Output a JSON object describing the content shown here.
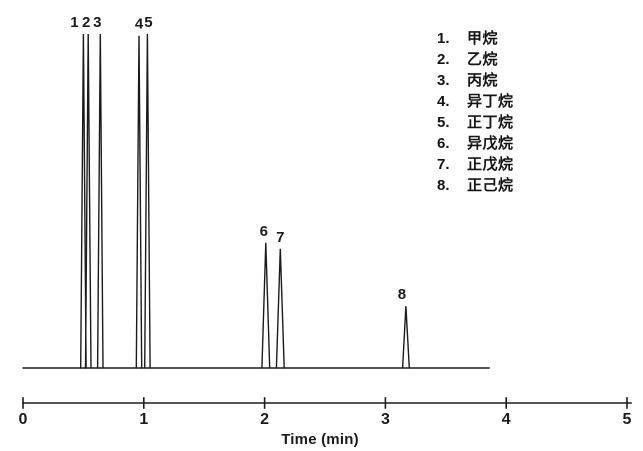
{
  "figure": {
    "background": "#ffffff",
    "ink_color": "#1b1b1b"
  },
  "legend": {
    "items": [
      {
        "num": "1.",
        "name": "甲烷"
      },
      {
        "num": "2.",
        "name": "乙烷"
      },
      {
        "num": "3.",
        "name": "丙烷"
      },
      {
        "num": "4.",
        "name": "异丁烷"
      },
      {
        "num": "5.",
        "name": "正丁烷"
      },
      {
        "num": "6.",
        "name": "异戊烷"
      },
      {
        "num": "7.",
        "name": "正戊烷"
      },
      {
        "num": "8.",
        "name": "正己烷"
      }
    ]
  },
  "chart_data": {
    "type": "line",
    "subtype": "gas-chromatogram",
    "title": "",
    "xlabel": "Time (min)",
    "ylabel": "",
    "xlim": [
      0,
      5
    ],
    "xticks": [
      0,
      1,
      2,
      3,
      4,
      5
    ],
    "y_axis_shown": false,
    "grid": false,
    "legend_position": "right",
    "baseline": {
      "start_min": 0.0,
      "end_min": 3.86,
      "level": 0.0
    },
    "peaks": [
      {
        "id": "1",
        "name": "甲烷",
        "time_min": 0.5,
        "rel_height": 1.0,
        "base_width_min": 0.045
      },
      {
        "id": "2",
        "name": "乙烷",
        "time_min": 0.54,
        "rel_height": 1.0,
        "base_width_min": 0.045
      },
      {
        "id": "3",
        "name": "丙烷",
        "time_min": 0.64,
        "rel_height": 1.0,
        "base_width_min": 0.045
      },
      {
        "id": "4",
        "name": "异丁烷",
        "time_min": 0.96,
        "rel_height": 0.995,
        "base_width_min": 0.045
      },
      {
        "id": "5",
        "name": "正丁烷",
        "time_min": 1.03,
        "rel_height": 1.0,
        "base_width_min": 0.045
      },
      {
        "id": "6",
        "name": "异戊烷",
        "time_min": 2.01,
        "rel_height": 0.375,
        "base_width_min": 0.065
      },
      {
        "id": "7",
        "name": "正戊烷",
        "time_min": 2.13,
        "rel_height": 0.357,
        "base_width_min": 0.065
      },
      {
        "id": "8",
        "name": "正己烷",
        "time_min": 3.17,
        "rel_height": 0.185,
        "base_width_min": 0.055
      }
    ]
  }
}
